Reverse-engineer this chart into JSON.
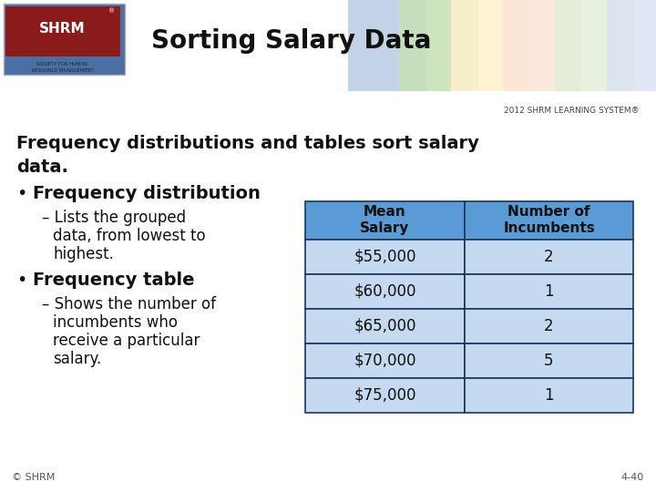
{
  "title": "Sorting Salary Data",
  "subtitle_line1": "Frequency distributions and tables sort salary",
  "subtitle_line2": "data.",
  "bullet1": "Frequency distribution",
  "sub1": "Lists the grouped\ndata, from lowest to\nhighest.",
  "bullet2": "Frequency table",
  "sub2": "Shows the number of\nincumbents who\nreceive a particular\nsalary.",
  "table_headers": [
    "Mean\nSalary",
    "Number of\nIncumbents"
  ],
  "table_data": [
    [
      "$55,000",
      "2"
    ],
    [
      "$60,000",
      "1"
    ],
    [
      "$65,000",
      "2"
    ],
    [
      "$70,000",
      "5"
    ],
    [
      "$75,000",
      "1"
    ]
  ],
  "table_header_color": "#5b9bd5",
  "table_row_color": "#c5d9f1",
  "table_border_color": "#17375e",
  "footer_left": "© SHRM",
  "footer_right": "4-40",
  "bg_color": "#ffffff",
  "shrm_box_color": "#8b1a1a",
  "header_bg": "#dcdcdc",
  "system_text": "2012 SHRM LEARNING SYSTEM®",
  "deco_colors": [
    "#b8cce4",
    "#c6e0b4",
    "#fff2cc",
    "#fce4d6",
    "#e2efda",
    "#dae3f3"
  ],
  "stripe_color": "#808080"
}
